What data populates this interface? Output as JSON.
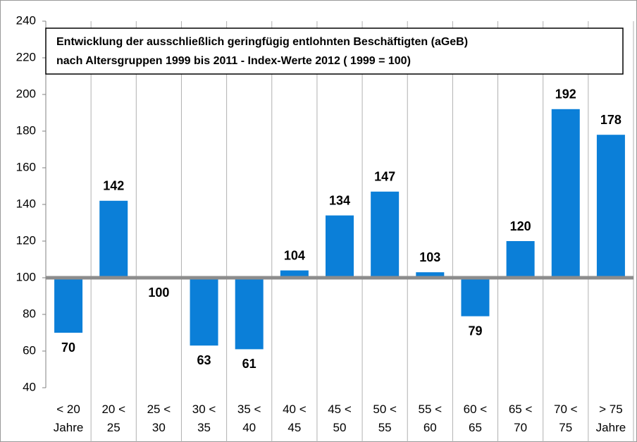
{
  "chart_data": {
    "type": "bar",
    "title": "Entwicklung der ausschließlich geringfügig entlohnten Beschäftigten (aGeB)\nnach Altersgruppen 1999 bis 2011 - Index-Werte 2012 ( 1999 = 100)",
    "categories": [
      "< 20\nJahre",
      "20 <\n25",
      "25 <\n30",
      "30 <\n35",
      "35 <\n40",
      "40 <\n45",
      "45 <\n50",
      "50 <\n55",
      "55 <\n60",
      "60 <\n65",
      "65 <\n70",
      "70 <\n75",
      "> 75\nJahre"
    ],
    "values": [
      70,
      142,
      100,
      63,
      61,
      104,
      134,
      147,
      103,
      79,
      120,
      192,
      178
    ],
    "color": "#0b7fd8",
    "baseline": 100,
    "ylim": [
      40,
      240
    ],
    "yticks": [
      40,
      60,
      80,
      100,
      120,
      140,
      160,
      180,
      200,
      220,
      240
    ]
  }
}
